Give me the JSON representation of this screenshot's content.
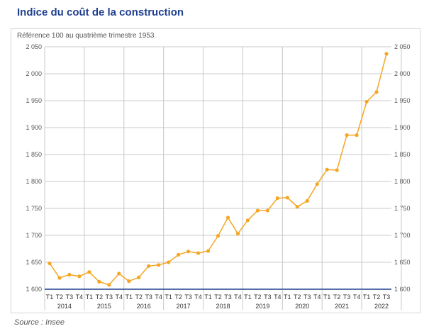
{
  "title": "Indice du coût de la construction",
  "subtitle": "Référence 100 au quatrième trimestre 1953",
  "source": "Source : Insee",
  "colors": {
    "line": "#f5a623",
    "grid": "#c8c8c8",
    "axis": "#1f3f8f"
  },
  "chart_data": {
    "type": "line",
    "title": "Indice du coût de la construction",
    "subtitle": "Référence 100 au quatrième trimestre 1953",
    "ylim": [
      1600,
      2050
    ],
    "yticks": [
      1600,
      1650,
      1700,
      1750,
      1800,
      1850,
      1900,
      1950,
      2000,
      2050
    ],
    "ytick_labels": [
      "1 600",
      "1 650",
      "1 700",
      "1 750",
      "1 800",
      "1 850",
      "1 900",
      "1 950",
      "2 000",
      "2 050"
    ],
    "years": [
      "2014",
      "2015",
      "2016",
      "2017",
      "2018",
      "2019",
      "2020",
      "2021",
      "2022"
    ],
    "quarter_labels": [
      "T1",
      "T2",
      "T3",
      "T4",
      "T1",
      "T2",
      "T3",
      "T4",
      "T1",
      "T2",
      "T3",
      "T4",
      "T1",
      "T2",
      "T3",
      "T4",
      "T1",
      "T2",
      "T3",
      "T4",
      "T1",
      "T2",
      "T3",
      "T4",
      "T1",
      "T2",
      "T3",
      "T4",
      "T1",
      "T2",
      "T3",
      "T4",
      "T1",
      "T2",
      "T3"
    ],
    "grid": true,
    "series": [
      {
        "values": [
          1648,
          1621,
          1627,
          1624,
          1632,
          1614,
          1608,
          1629,
          1615,
          1622,
          1643,
          1645,
          1650,
          1664,
          1670,
          1667,
          1671,
          1699,
          1733,
          1703,
          1728,
          1746,
          1746,
          1769,
          1770,
          1753,
          1764,
          1795,
          1822,
          1821,
          1886,
          1886,
          1948,
          1966,
          2037
        ]
      }
    ]
  }
}
